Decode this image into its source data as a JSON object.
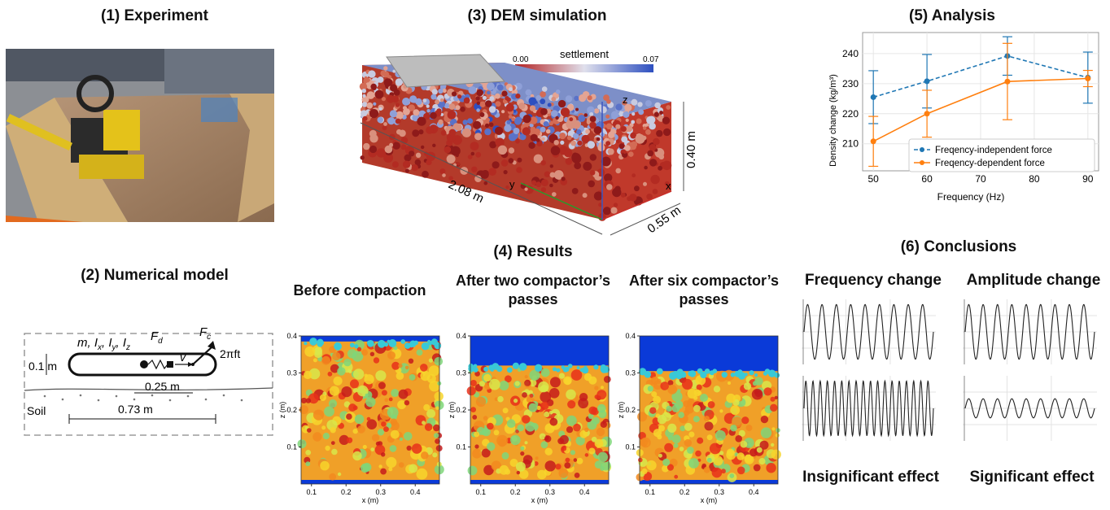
{
  "panels": {
    "experiment": {
      "title": "(1)  Experiment"
    },
    "numerical": {
      "title": "(2)  Numerical model",
      "labels": {
        "mass": "m, I",
        "ix_sub": "x",
        "iy": ", I",
        "iy_sub": "y",
        "iz": ", I",
        "iz_sub": "z",
        "fd": "F",
        "fd_sub": "d",
        "fc": "F",
        "fc_sub": "c",
        "v": "v",
        "freq": "2πft",
        "height": "0.1 m",
        "offset": "0.25 m",
        "length": "0.73 m",
        "soil": "Soil"
      }
    },
    "dem": {
      "title": "(3) DEM simulation",
      "colorbar_label": "settlement",
      "cb_min": "0.00",
      "cb_max": "0.07",
      "dim_length": "2.08 m",
      "dim_width": "0.55 m",
      "dim_height": "0.40 m",
      "axis_x": "x",
      "axis_y": "y",
      "axis_z": "z",
      "colors": {
        "low": "#b32020",
        "mid": "#d9d9e6",
        "high": "#2d4fc0"
      }
    },
    "results": {
      "title": "(4) Results",
      "columns": [
        {
          "header": "Before compaction",
          "fill_top": 0.385
        },
        {
          "header": "After two compactor’s passes",
          "fill_top": 0.32
        },
        {
          "header": "After six compactor’s passes",
          "fill_top": 0.305
        }
      ],
      "ytick": [
        "0.1",
        "0.2",
        "0.3",
        "0.4"
      ],
      "xtick": [
        "0.1",
        "0.2",
        "0.3",
        "0.4"
      ],
      "xlabel": "x (m)",
      "ylabel": "z (m)"
    },
    "analysis": {
      "title": "(5) Analysis"
    },
    "conclusions": {
      "title": "(6) Conclusions",
      "freq": {
        "header": "Frequency change",
        "verdict": "Insignificant effect"
      },
      "amp": {
        "header": "Amplitude change",
        "verdict": "Significant effect"
      }
    }
  },
  "chart_data": {
    "type": "line",
    "x": [
      50,
      60,
      75,
      90
    ],
    "xlabel": "Frequency (Hz)",
    "ylabel": "Density change",
    "ylabel_unit": "kg/m³",
    "xlim": [
      48,
      92
    ],
    "ylim": [
      201,
      247
    ],
    "xticks": [
      50,
      60,
      70,
      80,
      90
    ],
    "yticks": [
      210,
      220,
      230,
      240
    ],
    "grid": true,
    "legend": "bottom-right",
    "series": [
      {
        "name": "Freqency-independent force",
        "values": [
          225.5,
          230.8,
          239.2,
          232.0
        ],
        "err": [
          8.8,
          8.9,
          6.4,
          8.5
        ],
        "color": "#1f77b4",
        "dash": true
      },
      {
        "name": "Freqency-dependent force",
        "values": [
          210.8,
          220.0,
          230.7,
          231.7
        ],
        "err": [
          8.3,
          7.8,
          12.7,
          2.7
        ],
        "color": "#ff7f0e",
        "dash": false
      }
    ]
  }
}
